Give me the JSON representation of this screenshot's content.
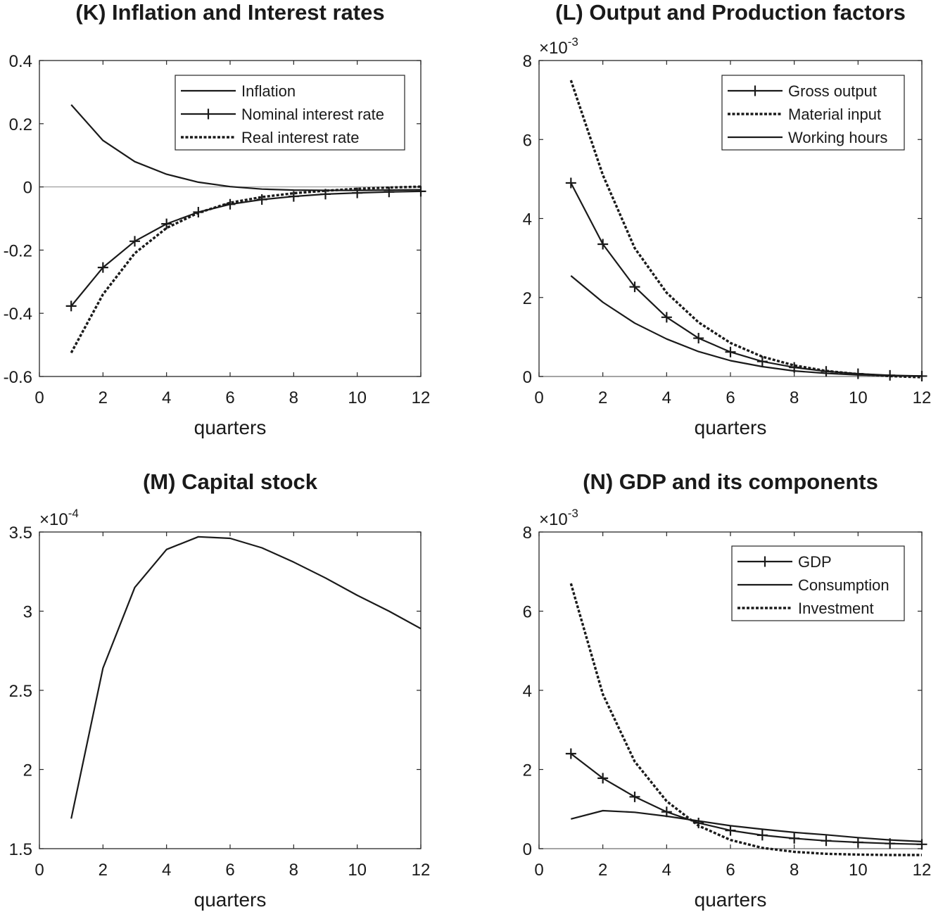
{
  "chart_data": [
    {
      "type": "line",
      "title": "(K) Inflation and Interest rates",
      "xlabel": "quarters",
      "ylabel": "",
      "xlim": [
        0,
        12
      ],
      "ylim": [
        -0.6,
        0.4
      ],
      "xticks": [
        0,
        2,
        4,
        6,
        8,
        10,
        12
      ],
      "yticks": [
        -0.6,
        -0.4,
        -0.2,
        0,
        0.2,
        0.4
      ],
      "ytick_labels": [
        "-0.6",
        "-0.4",
        "-0.2",
        "0",
        "0.2",
        "0.4"
      ],
      "y_exponent": "",
      "zero_line": true,
      "legend_position": "top-right",
      "x": [
        1,
        2,
        3,
        4,
        5,
        6,
        7,
        8,
        9,
        10,
        11,
        12
      ],
      "series": [
        {
          "name": "Inflation",
          "style": "solid",
          "marker": "none",
          "values": [
            0.26,
            0.147,
            0.08,
            0.04,
            0.015,
            0.001,
            -0.007,
            -0.01,
            -0.011,
            -0.011,
            -0.01,
            -0.009
          ]
        },
        {
          "name": "Nominal interest rate",
          "style": "solid",
          "marker": "plus",
          "values": [
            -0.377,
            -0.255,
            -0.172,
            -0.117,
            -0.08,
            -0.055,
            -0.04,
            -0.03,
            -0.023,
            -0.019,
            -0.016,
            -0.014
          ]
        },
        {
          "name": "Real interest rate",
          "style": "dotted",
          "marker": "none",
          "values": [
            -0.525,
            -0.34,
            -0.21,
            -0.13,
            -0.082,
            -0.05,
            -0.032,
            -0.02,
            -0.012,
            -0.006,
            -0.002,
            0.001
          ]
        }
      ]
    },
    {
      "type": "line",
      "title": "(L) Output and Production factors",
      "xlabel": "quarters",
      "ylabel": "",
      "xlim": [
        0,
        12
      ],
      "ylim": [
        0,
        0.008
      ],
      "xticks": [
        0,
        2,
        4,
        6,
        8,
        10,
        12
      ],
      "yticks": [
        0,
        0.002,
        0.004,
        0.006,
        0.008
      ],
      "ytick_labels": [
        "0",
        "2",
        "4",
        "6",
        "8"
      ],
      "y_exponent": "-3",
      "zero_line": true,
      "legend_position": "top-right",
      "x": [
        1,
        2,
        3,
        4,
        5,
        6,
        7,
        8,
        9,
        10,
        11,
        12
      ],
      "series": [
        {
          "name": "Gross output",
          "style": "solid",
          "marker": "plus",
          "values": [
            0.0049,
            0.00335,
            0.00227,
            0.0015,
            0.00097,
            0.00062,
            0.00038,
            0.00023,
            0.00013,
            7e-05,
            3e-05,
            1e-05
          ]
        },
        {
          "name": "Material input",
          "style": "dotted",
          "marker": "none",
          "values": [
            0.0075,
            0.0051,
            0.00325,
            0.00212,
            0.00137,
            0.00085,
            0.0005,
            0.00028,
            0.00014,
            6e-05,
            1e-05,
            -2e-05
          ]
        },
        {
          "name": "Working hours",
          "style": "solid",
          "marker": "none",
          "values": [
            0.00255,
            0.00188,
            0.00135,
            0.00095,
            0.00063,
            0.0004,
            0.00025,
            0.00014,
            8e-05,
            4e-05,
            2e-05,
            1e-05
          ]
        }
      ]
    },
    {
      "type": "line",
      "title": "(M) Capital stock",
      "xlabel": "quarters",
      "ylabel": "",
      "xlim": [
        0,
        12
      ],
      "ylim": [
        0.00015,
        0.00035
      ],
      "xticks": [
        0,
        2,
        4,
        6,
        8,
        10,
        12
      ],
      "yticks": [
        0.00015,
        0.0002,
        0.00025,
        0.0003,
        0.00035
      ],
      "ytick_labels": [
        "1.5",
        "2",
        "2.5",
        "3",
        "3.5"
      ],
      "y_exponent": "-4",
      "zero_line": false,
      "legend_position": "none",
      "x": [
        1,
        2,
        3,
        4,
        5,
        6,
        7,
        8,
        9,
        10,
        11,
        12
      ],
      "series": [
        {
          "name": "",
          "style": "solid",
          "marker": "none",
          "values": [
            0.000169,
            0.000264,
            0.000315,
            0.000339,
            0.000347,
            0.000346,
            0.00034,
            0.000331,
            0.000321,
            0.00031,
            0.0003,
            0.000289
          ]
        }
      ]
    },
    {
      "type": "line",
      "title": "(N) GDP and its components",
      "xlabel": "quarters",
      "ylabel": "",
      "xlim": [
        0,
        12
      ],
      "ylim": [
        0,
        0.008
      ],
      "xticks": [
        0,
        2,
        4,
        6,
        8,
        10,
        12
      ],
      "yticks": [
        0,
        0.002,
        0.004,
        0.006,
        0.008
      ],
      "ytick_labels": [
        "0",
        "2",
        "4",
        "6",
        "8"
      ],
      "y_exponent": "-3",
      "zero_line": true,
      "legend_position": "top-right",
      "x": [
        1,
        2,
        3,
        4,
        5,
        6,
        7,
        8,
        9,
        10,
        11,
        12
      ],
      "series": [
        {
          "name": "GDP",
          "style": "solid",
          "marker": "plus",
          "values": [
            0.0024,
            0.00178,
            0.00131,
            0.00093,
            0.00065,
            0.00046,
            0.00034,
            0.00026,
            0.0002,
            0.00016,
            0.00013,
            0.00011
          ]
        },
        {
          "name": "Consumption",
          "style": "solid",
          "marker": "none",
          "values": [
            0.00075,
            0.00096,
            0.00092,
            0.00082,
            0.0007,
            0.00058,
            0.00049,
            0.00041,
            0.00035,
            0.00028,
            0.00022,
            0.00018
          ]
        },
        {
          "name": "Investment",
          "style": "dotted",
          "marker": "none",
          "values": [
            0.0067,
            0.0039,
            0.0022,
            0.0012,
            0.00058,
            0.00022,
            2e-05,
            -8e-05,
            -0.00013,
            -0.00015,
            -0.00016,
            -0.00016
          ]
        }
      ]
    }
  ]
}
